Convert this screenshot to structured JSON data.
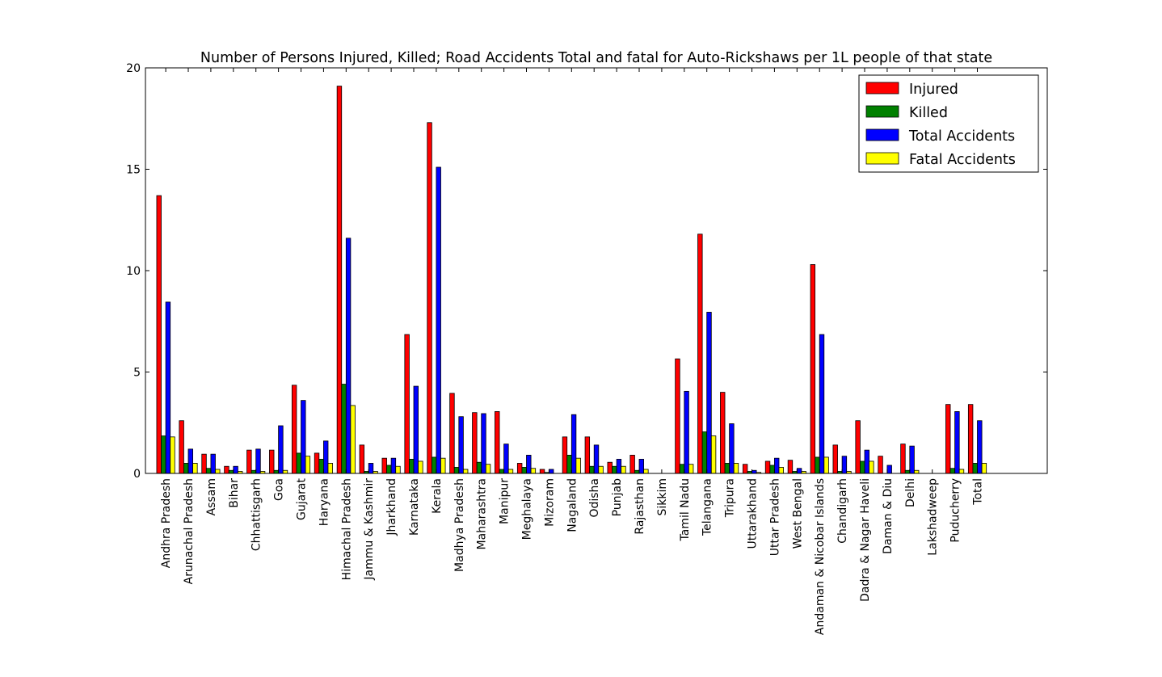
{
  "chart_data": {
    "type": "bar",
    "title": "Number of Persons Injured, Killed; Road Accidents Total and fatal for Auto-Rickshaws per 1L people of that state",
    "xlabel": "",
    "ylabel": "",
    "ylim": [
      0,
      20
    ],
    "yticks": [
      0,
      5,
      10,
      15,
      20
    ],
    "grid": false,
    "legend_position": "top-right",
    "categories": [
      "Andhra Pradesh",
      "Arunachal Pradesh",
      "Assam",
      "Bihar",
      "Chhattisgarh",
      "Goa",
      "Gujarat",
      "Haryana",
      "Himachal Pradesh",
      "Jammu & Kashmir",
      "Jharkhand",
      "Karnataka",
      "Kerala",
      "Madhya Pradesh",
      "Maharashtra",
      "Manipur",
      "Meghalaya",
      "Mizoram",
      "Nagaland",
      "Odisha",
      "Punjab",
      "Rajasthan",
      "Sikkim",
      "Tamil Nadu",
      "Telangana",
      "Tripura",
      "Uttarakhand",
      "Uttar Pradesh",
      "West Bengal",
      "Andaman & Nicobar Islands",
      "Chandigarh",
      "Dadra & Nagar Haveli",
      "Daman & Diu",
      "Delhi",
      "Lakshadweep",
      "Puducherry",
      "Total"
    ],
    "series": [
      {
        "name": "Injured",
        "color": "#ff0000",
        "values": [
          13.7,
          2.6,
          0.95,
          0.35,
          1.15,
          1.15,
          4.35,
          1.0,
          19.1,
          1.4,
          0.75,
          6.85,
          17.3,
          3.95,
          3.0,
          3.05,
          0.5,
          0.2,
          1.8,
          1.8,
          0.55,
          0.9,
          0,
          5.65,
          11.8,
          4.0,
          0.45,
          0.6,
          0.65,
          10.3,
          1.4,
          2.6,
          0.85,
          1.45,
          0,
          3.4,
          3.4
        ]
      },
      {
        "name": "Killed",
        "color": "#008000",
        "values": [
          1.85,
          0.5,
          0.25,
          0.15,
          0.15,
          0.15,
          1.0,
          0.7,
          4.4,
          0.1,
          0.4,
          0.7,
          0.8,
          0.3,
          0.55,
          0.2,
          0.3,
          0.05,
          0.9,
          0.35,
          0.35,
          0.15,
          0,
          0.45,
          2.05,
          0.5,
          0.1,
          0.4,
          0.1,
          0.8,
          0.1,
          0.6,
          0,
          0.15,
          0,
          0.25,
          0.5
        ]
      },
      {
        "name": "Total Accidents",
        "color": "#0000ff",
        "values": [
          8.45,
          1.2,
          0.95,
          0.35,
          1.2,
          2.35,
          3.6,
          1.6,
          11.6,
          0.5,
          0.75,
          4.3,
          15.1,
          2.8,
          2.95,
          1.45,
          0.9,
          0.2,
          2.9,
          1.4,
          0.7,
          0.7,
          0,
          4.05,
          7.95,
          2.45,
          0.15,
          0.75,
          0.25,
          6.85,
          0.85,
          1.15,
          0.4,
          1.35,
          0,
          3.05,
          2.6
        ]
      },
      {
        "name": "Fatal Accidents",
        "color": "#ffff00",
        "values": [
          1.8,
          0.5,
          0.2,
          0.1,
          0.1,
          0.15,
          0.85,
          0.5,
          3.35,
          0.1,
          0.35,
          0.6,
          0.75,
          0.2,
          0.45,
          0.2,
          0.25,
          0,
          0.75,
          0.35,
          0.35,
          0.2,
          0,
          0.45,
          1.85,
          0.5,
          0.05,
          0.3,
          0.1,
          0.8,
          0.1,
          0.6,
          0,
          0.15,
          0,
          0.2,
          0.5
        ]
      }
    ]
  }
}
